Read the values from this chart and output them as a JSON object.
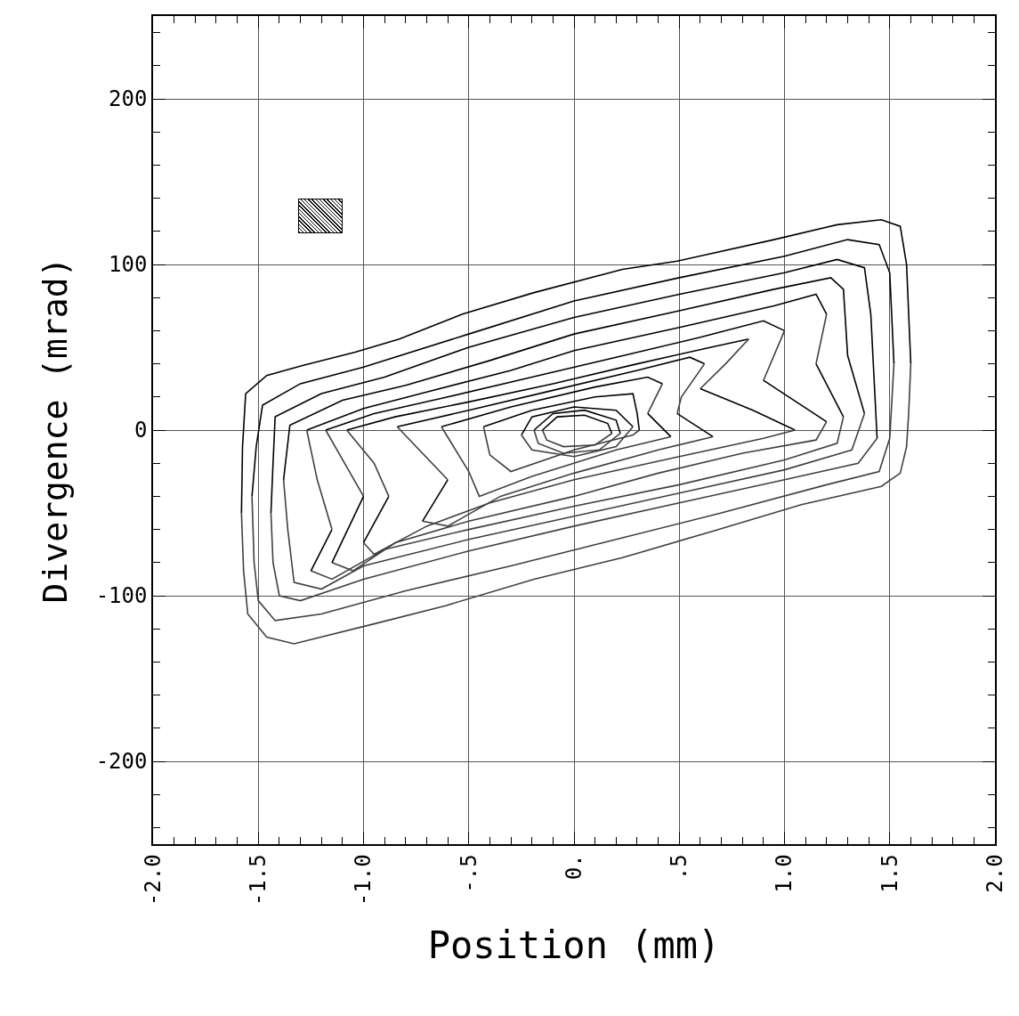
{
  "chart_data": {
    "type": "line",
    "xlabel": "Position (mm)",
    "ylabel": "Divergence (mrad)",
    "xlim": [
      -2,
      2
    ],
    "ylim": [
      -250,
      250
    ],
    "xticks": [
      {
        "value": -2,
        "label": "-2.0"
      },
      {
        "value": -1.5,
        "label": "-1.5"
      },
      {
        "value": -1,
        "label": "-1.0"
      },
      {
        "value": -0.5,
        "label": "-.5"
      },
      {
        "value": 0,
        "label": "0."
      },
      {
        "value": 0.5,
        "label": ".5"
      },
      {
        "value": 1,
        "label": "1.0"
      },
      {
        "value": 1.5,
        "label": "1.5"
      },
      {
        "value": 2,
        "label": "2.0"
      }
    ],
    "yticks": [
      -200,
      -100,
      0,
      100,
      200
    ],
    "grid": true,
    "marker": "none",
    "series": [
      {
        "color": "#000000",
        "x": [
          -1.58,
          -1.575,
          -1.56,
          -1.46,
          -1.29,
          -1.04,
          -0.83,
          -0.53,
          -0.19,
          0.23,
          0.49,
          0.95,
          1.25,
          1.46,
          1.55,
          1.58,
          1.59,
          1.6
        ],
        "values": [
          -50,
          -10,
          22,
          33,
          39,
          47,
          55,
          70,
          83,
          97,
          102,
          115,
          124,
          127,
          123,
          100,
          70,
          40
        ]
      },
      {
        "color": "#404040",
        "x": [
          -1.58,
          -1.57,
          -1.55,
          -1.46,
          -1.33,
          -0.95,
          -0.61,
          -0.19,
          0.23,
          0.66,
          1.08,
          1.46,
          1.55,
          1.58,
          1.59,
          1.6
        ],
        "values": [
          -50,
          -85,
          -111,
          -125,
          -129,
          -117,
          -106,
          -90,
          -77,
          -61,
          -45,
          -34,
          -26,
          -10,
          10,
          40
        ]
      },
      {
        "color": "#000000",
        "x": [
          -1.53,
          -1.51,
          -1.48,
          -1.3,
          -1.0,
          -0.5,
          0,
          0.5,
          1.0,
          1.3,
          1.45,
          1.5,
          1.52
        ],
        "values": [
          -40,
          -10,
          15,
          28,
          38,
          58,
          78,
          92,
          105,
          115,
          112,
          95,
          40
        ]
      },
      {
        "color": "#404040",
        "x": [
          -1.53,
          -1.52,
          -1.5,
          -1.42,
          -1.2,
          -0.8,
          -0.3,
          0.2,
          0.7,
          1.2,
          1.45,
          1.5,
          1.52
        ],
        "values": [
          -40,
          -80,
          -103,
          -115,
          -111,
          -97,
          -82,
          -66,
          -50,
          -33,
          -25,
          -5,
          40
        ]
      },
      {
        "color": "#000000",
        "x": [
          -1.44,
          -1.43,
          -1.42,
          -1.2,
          -0.9,
          -0.5,
          0,
          0.5,
          1.0,
          1.25,
          1.38,
          1.41,
          1.43,
          1.44
        ],
        "values": [
          -50,
          -20,
          8,
          22,
          32,
          50,
          68,
          82,
          95,
          103,
          98,
          70,
          20,
          -5
        ]
      },
      {
        "color": "#404040",
        "x": [
          -1.44,
          -1.43,
          -1.4,
          -1.3,
          -1.0,
          -0.5,
          0,
          0.5,
          1.0,
          1.35,
          1.44
        ],
        "values": [
          -50,
          -80,
          -100,
          -103,
          -90,
          -73,
          -58,
          -44,
          -30,
          -20,
          -5
        ]
      },
      {
        "color": "#000000",
        "x": [
          -1.38,
          -1.35,
          -1.1,
          -0.8,
          -0.4,
          0,
          0.5,
          0.95,
          1.22,
          1.28,
          1.3,
          1.38
        ],
        "values": [
          -30,
          3,
          18,
          27,
          42,
          58,
          72,
          85,
          92,
          85,
          45,
          10
        ]
      },
      {
        "color": "#404040",
        "x": [
          -1.38,
          -1.36,
          -1.33,
          -1.2,
          -1.0,
          -0.5,
          0,
          0.5,
          1.0,
          1.32,
          1.38
        ],
        "values": [
          -30,
          -60,
          -92,
          -96,
          -82,
          -66,
          -52,
          -38,
          -24,
          -12,
          10
        ]
      },
      {
        "color": "#000000",
        "x": [
          -1.27,
          -1.0,
          -0.7,
          -0.3,
          0,
          0.5,
          0.95,
          1.15,
          1.2
        ],
        "values": [
          0,
          13,
          23,
          36,
          48,
          62,
          75,
          82,
          70
        ]
      },
      {
        "color": "#404040",
        "x": [
          1.15,
          1.2
        ],
        "values": [
          40,
          70
        ]
      },
      {
        "color": "#000000",
        "x": [
          1.15,
          1.28
        ],
        "values": [
          40,
          8
        ]
      },
      {
        "color": "#404040",
        "x": [
          -1.25,
          -1.15,
          -0.9,
          -0.5,
          0,
          0.5,
          1.0,
          1.25,
          1.28
        ],
        "values": [
          -85,
          -90,
          -72,
          -60,
          -46,
          -33,
          -18,
          -8,
          8
        ]
      },
      {
        "color": "#000000",
        "x": [
          -1.25,
          -1.15
        ],
        "values": [
          -85,
          -60
        ]
      },
      {
        "color": "#404040",
        "x": [
          -1.27,
          -1.22,
          -1.15
        ],
        "values": [
          0,
          -30,
          -60
        ]
      },
      {
        "color": "#000000",
        "x": [
          -1.18,
          -0.95,
          -0.6,
          -0.2,
          0.2,
          0.6,
          0.9,
          1.0
        ],
        "values": [
          0,
          10,
          20,
          32,
          44,
          56,
          66,
          60
        ]
      },
      {
        "color": "#404040",
        "x": [
          0.9,
          1.0
        ],
        "values": [
          30,
          60
        ]
      },
      {
        "color": "#000000",
        "x": [
          0.9,
          1.2
        ],
        "values": [
          30,
          5
        ]
      },
      {
        "color": "#404040",
        "x": [
          -1.15,
          -1.05,
          -0.85,
          -0.5,
          0,
          0.4,
          0.8,
          1.15,
          1.2
        ],
        "values": [
          -80,
          -85,
          -68,
          -55,
          -40,
          -26,
          -14,
          -6,
          5
        ]
      },
      {
        "color": "#000000",
        "x": [
          -1.15,
          -1.0
        ],
        "values": [
          -80,
          -40
        ]
      },
      {
        "color": "#404040",
        "x": [
          -1.18,
          -1.0
        ],
        "values": [
          0,
          -40
        ]
      },
      {
        "color": "#000000",
        "x": [
          -1.08,
          -0.85,
          -0.5,
          -0.1,
          0.3,
          0.65,
          0.83
        ],
        "values": [
          0,
          8,
          17,
          28,
          40,
          50,
          55
        ]
      },
      {
        "color": "#404040",
        "x": [
          0.6,
          0.72,
          0.83
        ],
        "values": [
          25,
          40,
          55
        ]
      },
      {
        "color": "#000000",
        "x": [
          0.6,
          0.85,
          1.05
        ],
        "values": [
          25,
          12,
          0
        ]
      },
      {
        "color": "#404040",
        "x": [
          -1.0,
          -0.95,
          -0.7,
          -0.4,
          0,
          0.5,
          0.9,
          1.05
        ],
        "values": [
          -68,
          -75,
          -58,
          -44,
          -30,
          -16,
          -5,
          0
        ]
      },
      {
        "color": "#000000",
        "x": [
          -1.0,
          -0.88
        ],
        "values": [
          -68,
          -40
        ]
      },
      {
        "color": "#404040",
        "x": [
          -1.08,
          -0.95,
          -0.88
        ],
        "values": [
          0,
          -20,
          -40
        ]
      },
      {
        "color": "#000000",
        "x": [
          -0.84,
          -0.5,
          -0.1,
          0.3,
          0.55,
          0.62
        ],
        "values": [
          2,
          12,
          24,
          36,
          44,
          40
        ]
      },
      {
        "color": "#404040",
        "x": [
          0.49,
          0.51,
          0.62
        ],
        "values": [
          10,
          20,
          40
        ]
      },
      {
        "color": "#000000",
        "x": [
          0.49,
          0.66
        ],
        "values": [
          10,
          -4
        ]
      },
      {
        "color": "#404040",
        "x": [
          -0.72,
          -0.6,
          -0.35,
          0,
          0.4,
          0.66
        ],
        "values": [
          -55,
          -58,
          -40,
          -26,
          -12,
          -4
        ]
      },
      {
        "color": "#000000",
        "x": [
          -0.72,
          -0.6
        ],
        "values": [
          -55,
          -30
        ]
      },
      {
        "color": "#404040",
        "x": [
          -0.84,
          -0.6
        ],
        "values": [
          2,
          -30
        ]
      },
      {
        "color": "#000000",
        "x": [
          -0.63,
          -0.3,
          0.1,
          0.35,
          0.42
        ],
        "values": [
          2,
          14,
          26,
          32,
          28
        ]
      },
      {
        "color": "#404040",
        "x": [
          0.35,
          0.42
        ],
        "values": [
          10,
          28
        ]
      },
      {
        "color": "#000000",
        "x": [
          0.35,
          0.46
        ],
        "values": [
          10,
          -4
        ]
      },
      {
        "color": "#404040",
        "x": [
          -0.63,
          -0.5,
          -0.45,
          -0.2,
          0.2,
          0.46
        ],
        "values": [
          2,
          -25,
          -40,
          -28,
          -12,
          -4
        ]
      },
      {
        "color": "#000000",
        "x": [
          -0.43,
          -0.2,
          0.1,
          0.28,
          0.3,
          0.31
        ],
        "values": [
          2,
          12,
          20,
          22,
          10,
          0
        ]
      },
      {
        "color": "#404040",
        "x": [
          -0.43,
          -0.4,
          -0.3,
          0,
          0.28,
          0.31
        ],
        "values": [
          2,
          -15,
          -25,
          -12,
          -3,
          0
        ]
      },
      {
        "color": "#000000",
        "x": [
          -0.25,
          -0.2,
          0,
          0.2,
          0.28
        ],
        "values": [
          -3,
          8,
          14,
          12,
          2
        ]
      },
      {
        "color": "#404040",
        "x": [
          -0.25,
          -0.2,
          0,
          0.2,
          0.28
        ],
        "values": [
          -3,
          -12,
          -16,
          -10,
          2
        ]
      },
      {
        "color": "#000000",
        "x": [
          -0.19,
          -0.1,
          0.05,
          0.2,
          0.22
        ],
        "values": [
          0,
          10,
          12,
          6,
          -2
        ]
      },
      {
        "color": "#404040",
        "x": [
          -0.19,
          -0.17,
          -0.05,
          0.12,
          0.22
        ],
        "values": [
          0,
          -8,
          -14,
          -12,
          -2
        ]
      },
      {
        "color": "#000000",
        "x": [
          -0.15,
          -0.08,
          0.05,
          0.16,
          0.18
        ],
        "values": [
          0,
          8,
          9,
          4,
          -2
        ]
      },
      {
        "color": "#404040",
        "x": [
          -0.15,
          -0.13,
          -0.05,
          0.1,
          0.18
        ],
        "values": [
          0,
          -6,
          -10,
          -9,
          -2
        ]
      }
    ]
  }
}
